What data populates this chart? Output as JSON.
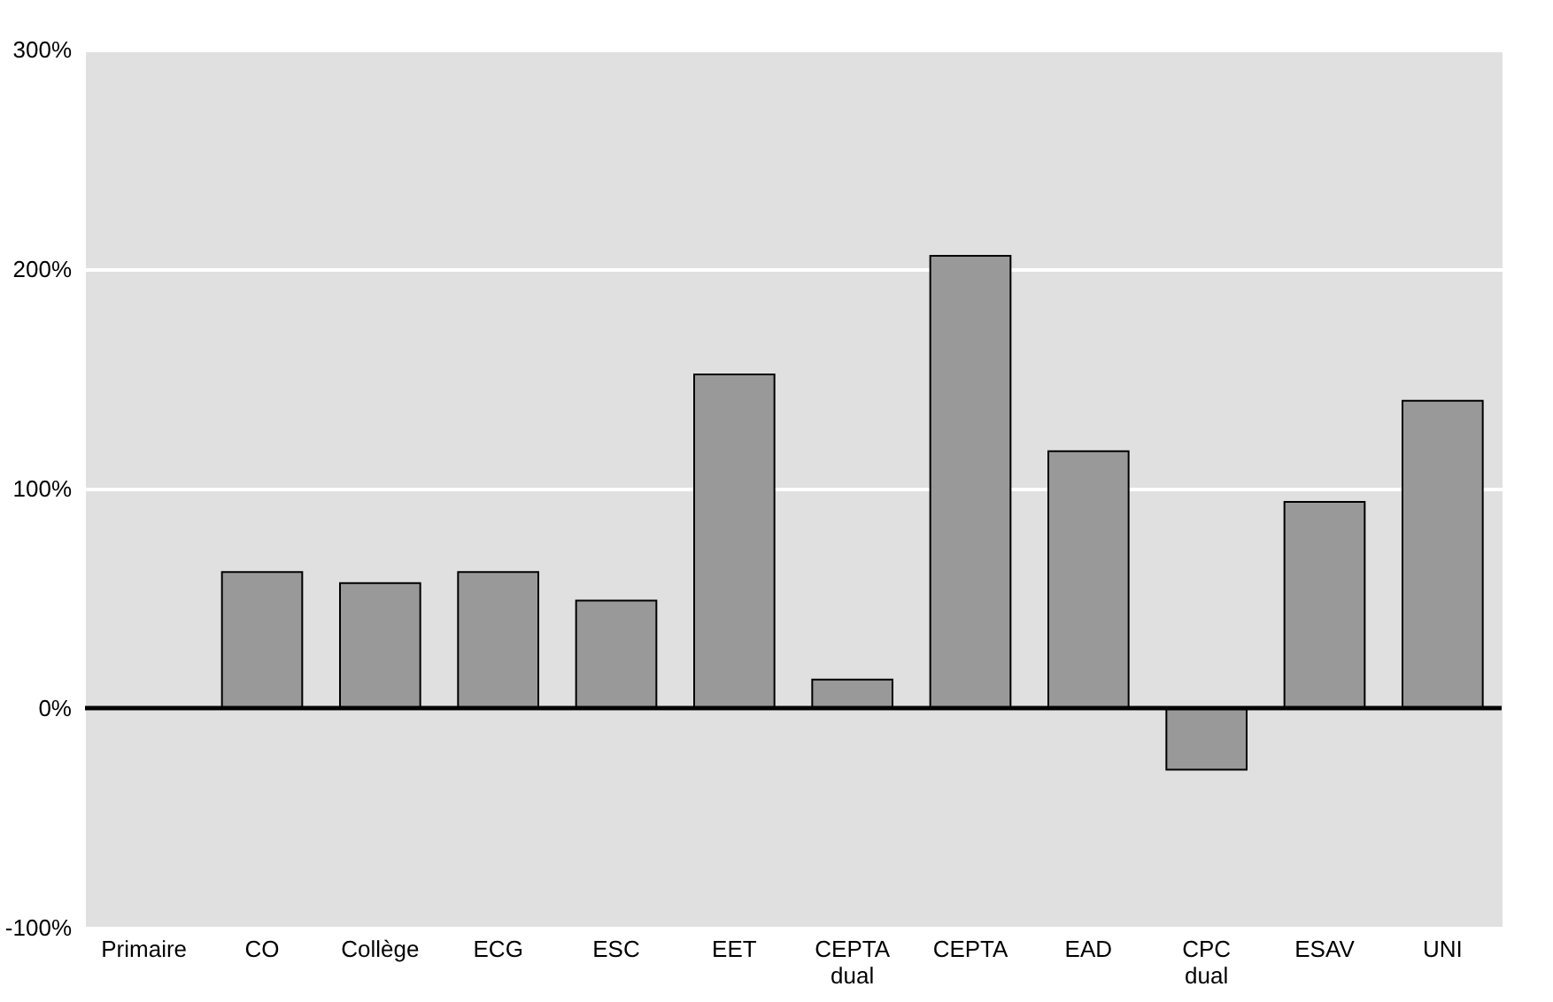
{
  "chart_data": {
    "type": "bar",
    "categories": [
      "Primaire",
      "CO",
      "Collège",
      "ECG",
      "ESC",
      "EET",
      "CEPTA dual",
      "CEPTA",
      "EAD",
      "CPC dual",
      "ESAV",
      "UNI"
    ],
    "values": [
      null,
      62,
      57,
      62,
      49,
      152,
      13,
      206,
      117,
      -28,
      94,
      140
    ],
    "color": "#999999",
    "ylim": [
      -100,
      300
    ],
    "yticks": [
      {
        "value": -100,
        "label": "-100%"
      },
      {
        "value": 0,
        "label": "0%"
      },
      {
        "value": 100,
        "label": "100%"
      },
      {
        "value": 200,
        "label": "200%"
      },
      {
        "value": 300,
        "label": "300%"
      }
    ],
    "grid": "y",
    "ref_lines": [
      {
        "axis": "y",
        "value": 0,
        "color": "#000000"
      }
    ]
  }
}
